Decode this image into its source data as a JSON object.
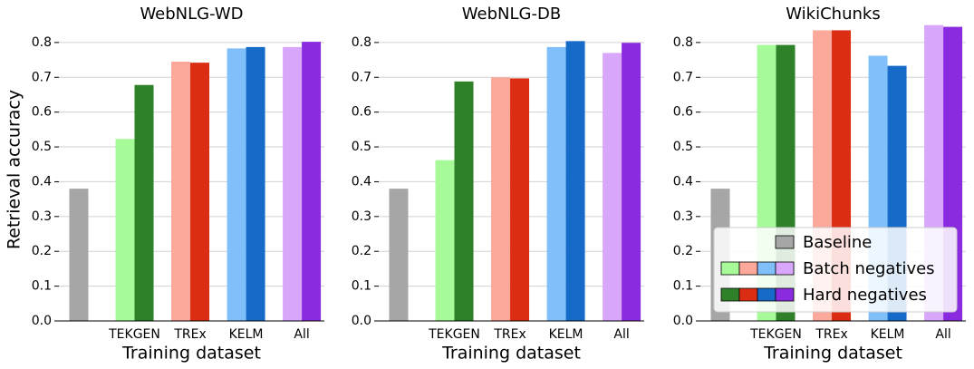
{
  "chart_data": [
    {
      "type": "bar",
      "title": "WebNLG-WD",
      "x_label": "Training dataset",
      "y_label": "Retrieval accuracy",
      "categories": [
        null,
        "TEKGEN",
        "TREx",
        "KELM",
        "All"
      ],
      "series": [
        {
          "color": "#a6a6a6",
          "values": [
            0.38,
            null,
            null,
            null,
            null
          ]
        },
        {
          "colors": [
            null,
            "#a6fb98",
            "#fca99b",
            "#80bffa",
            "#d8a6fb"
          ],
          "values": [
            null,
            0.523,
            0.745,
            0.783,
            0.787
          ]
        },
        {
          "colors": [
            null,
            "#2e8029",
            "#db2d14",
            "#166bc8",
            "#8b2be0"
          ],
          "values": [
            null,
            0.678,
            0.742,
            0.787,
            0.802
          ]
        }
      ],
      "ylim": [
        0,
        0.87
      ],
      "yticks": [
        {
          "value": 0,
          "label": "0.0"
        },
        0.1,
        0.2,
        0.3,
        0.4,
        0.5,
        0.6,
        0.7,
        0.8
      ],
      "grid": true
    },
    {
      "type": "bar",
      "title": "WebNLG-DB",
      "x_label": "Training dataset",
      "categories": [
        null,
        "TEKGEN",
        "TREx",
        "KELM",
        "All"
      ],
      "series": [
        {
          "color": "#a6a6a6",
          "values": [
            0.38,
            null,
            null,
            null,
            null
          ]
        },
        {
          "colors": [
            null,
            "#a6fb98",
            "#fca99b",
            "#80bffa",
            "#d8a6fb"
          ],
          "values": [
            null,
            0.462,
            0.7,
            0.787,
            0.77
          ]
        },
        {
          "colors": [
            null,
            "#2e8029",
            "#db2d14",
            "#166bc8",
            "#8b2be0"
          ],
          "values": [
            null,
            0.688,
            0.697,
            0.804,
            0.799
          ]
        }
      ],
      "ylim": [
        0,
        0.87
      ],
      "yticks": [
        {
          "value": 0,
          "label": "0.0"
        },
        0.1,
        0.2,
        0.3,
        0.4,
        0.5,
        0.6,
        0.7,
        0.8
      ],
      "grid": true
    },
    {
      "type": "bar",
      "title": "WikiChunks",
      "x_label": "Training dataset",
      "categories": [
        null,
        "TEKGEN",
        "TREx",
        "KELM",
        "All"
      ],
      "series": [
        {
          "name": "Baseline",
          "color": "#a6a6a6",
          "values": [
            0.38,
            null,
            null,
            null,
            null
          ]
        },
        {
          "name": "Batch negatives",
          "colors": [
            null,
            "#a6fb98",
            "#fca99b",
            "#80bffa",
            "#d8a6fb"
          ],
          "values": [
            null,
            0.793,
            0.835,
            0.762,
            0.85
          ]
        },
        {
          "name": "Hard negatives",
          "colors": [
            null,
            "#2e8029",
            "#db2d14",
            "#166bc8",
            "#8b2be0"
          ],
          "values": [
            null,
            0.793,
            0.835,
            0.733,
            0.845
          ]
        }
      ],
      "ylim": [
        0,
        0.87
      ],
      "yticks": [
        {
          "value": 0,
          "label": "0.0"
        },
        0.1,
        0.2,
        0.3,
        0.4,
        0.5,
        0.6,
        0.7,
        0.8
      ],
      "grid": true,
      "legend": "lower right"
    }
  ]
}
